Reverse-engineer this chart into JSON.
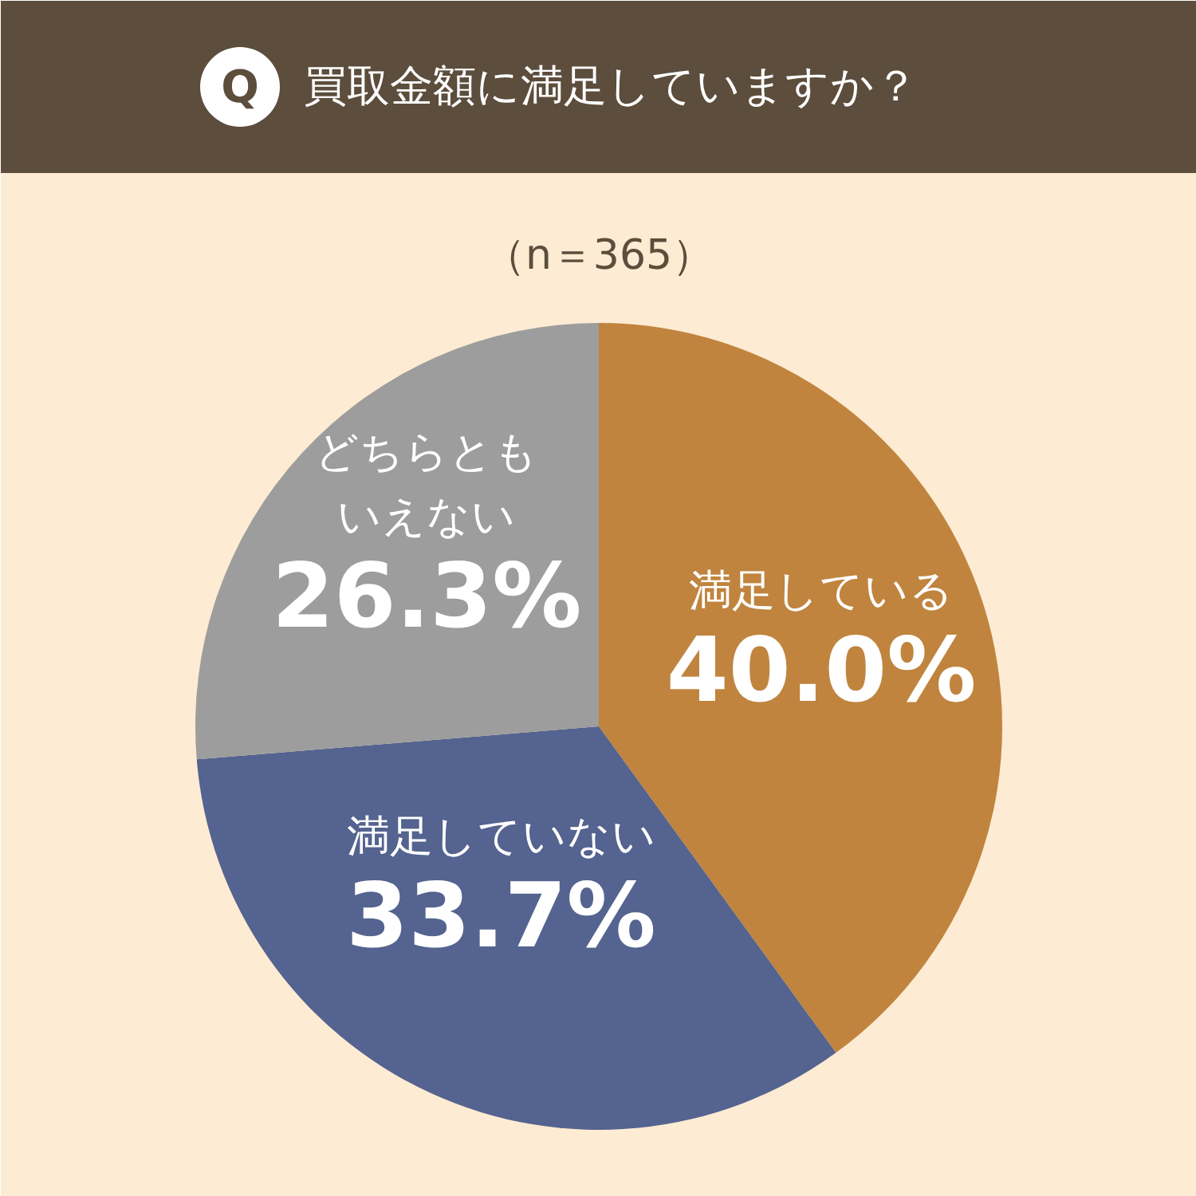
{
  "chart_data": {
    "type": "pie",
    "title": "買取金額に満足していますか？",
    "subtitle": "（n＝365）",
    "annotations": [
      "Q"
    ],
    "categories": [
      "満足している",
      "満足していない",
      "どちらともいえない"
    ],
    "values": [
      40.0,
      33.7,
      26.3
    ],
    "colors": [
      "#c0843e",
      "#54638f",
      "#9d9d9d"
    ],
    "value_labels": [
      "40.0%",
      "33.7%",
      "26.3%"
    ]
  }
}
